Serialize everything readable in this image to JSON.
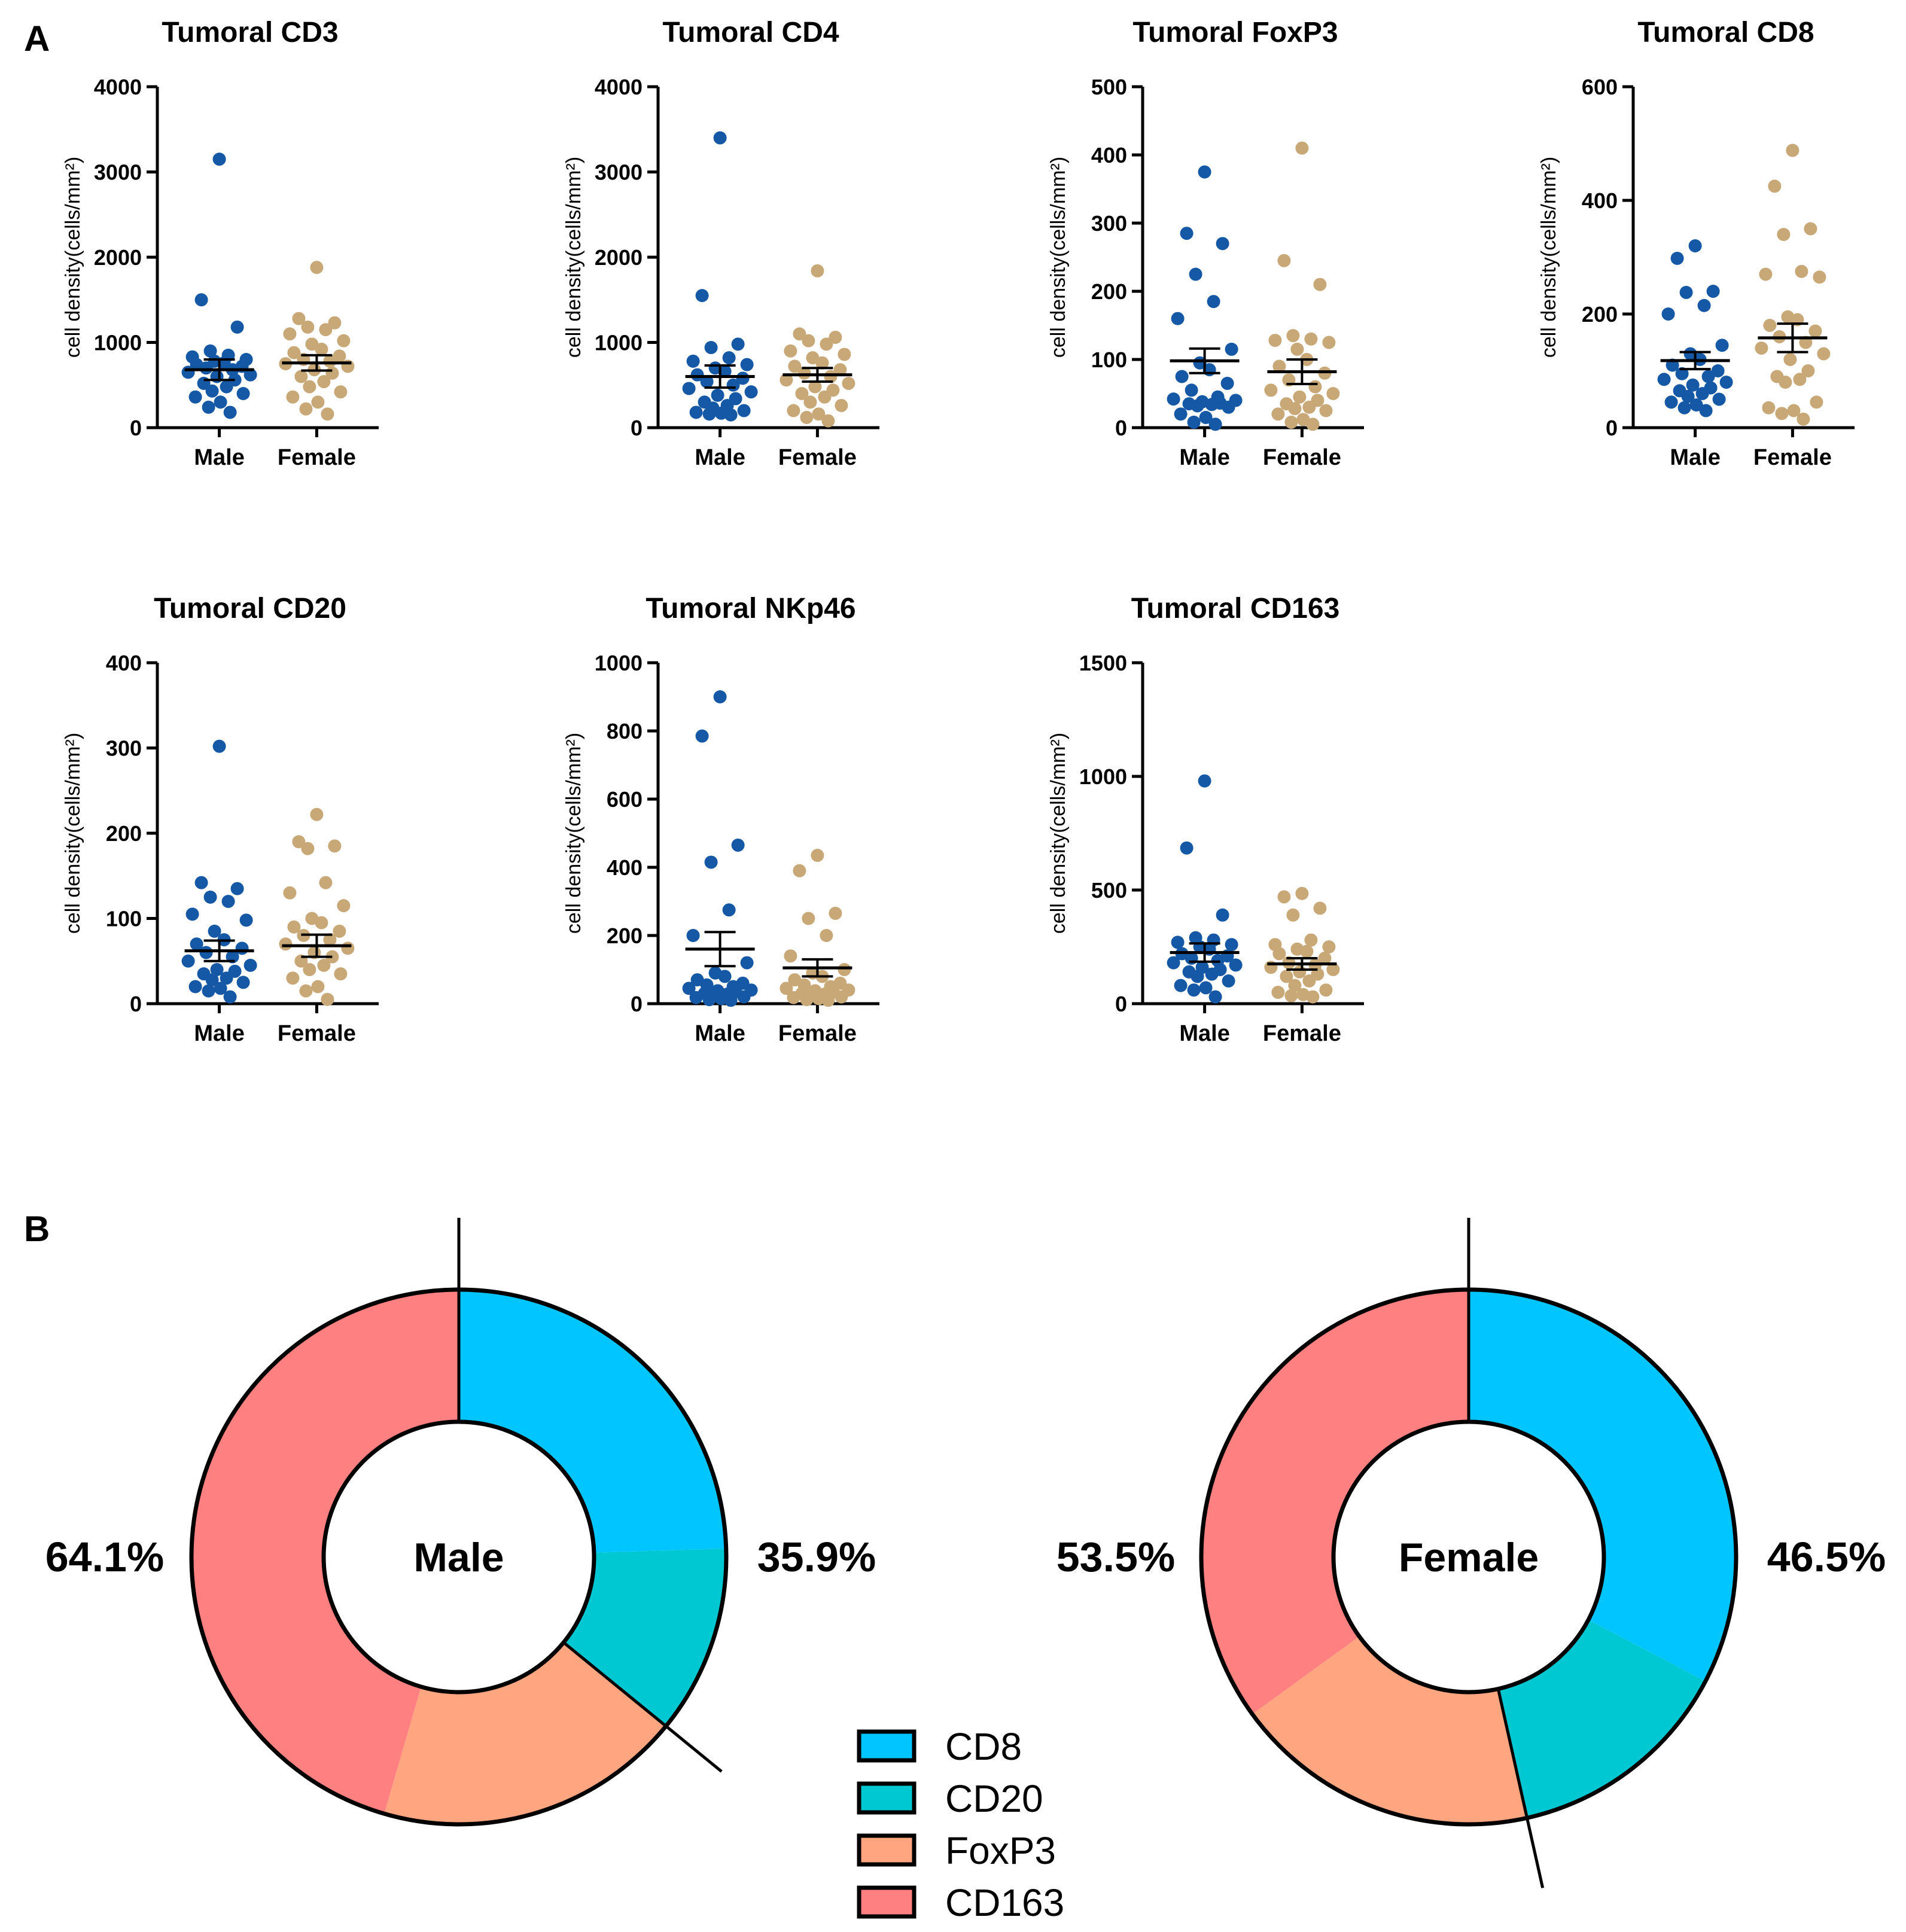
{
  "panel_labels": [
    "A",
    "B"
  ],
  "chart_data": [
    {
      "type": "scatter",
      "title": "Tumoral  CD3",
      "ylabel": "cell density(cells/mm²)",
      "ylim": [
        0,
        4000
      ],
      "yticks": [
        0,
        1000,
        2000,
        3000,
        4000
      ],
      "categories": [
        "Male",
        "Female"
      ],
      "series": [
        {
          "name": "Male",
          "mean": 680,
          "sem": 120,
          "values": [
            3150,
            1500,
            1180,
            900,
            850,
            830,
            800,
            780,
            760,
            740,
            720,
            700,
            680,
            650,
            620,
            600,
            560,
            520,
            480,
            430,
            400,
            360,
            300,
            240,
            180
          ]
        },
        {
          "name": "Female",
          "mean": 760,
          "sem": 90,
          "values": [
            1880,
            1280,
            1230,
            1180,
            1150,
            1100,
            1020,
            980,
            920,
            880,
            840,
            800,
            780,
            750,
            720,
            680,
            640,
            600,
            540,
            480,
            420,
            360,
            300,
            220,
            160
          ]
        }
      ]
    },
    {
      "type": "scatter",
      "title": "Tumoral CD4",
      "ylabel": "cell density(cells/mm²)",
      "ylim": [
        0,
        4000
      ],
      "yticks": [
        0,
        1000,
        2000,
        3000,
        4000
      ],
      "categories": [
        "Male",
        "Female"
      ],
      "series": [
        {
          "name": "Male",
          "mean": 600,
          "sem": 130,
          "values": [
            3400,
            1550,
            980,
            940,
            820,
            780,
            740,
            700,
            660,
            620,
            580,
            540,
            500,
            460,
            420,
            380,
            340,
            300,
            260,
            230,
            200,
            180,
            170,
            160,
            150
          ]
        },
        {
          "name": "Female",
          "mean": 620,
          "sem": 80,
          "values": [
            1840,
            1100,
            1060,
            1020,
            980,
            900,
            860,
            820,
            760,
            720,
            680,
            640,
            600,
            560,
            520,
            480,
            440,
            400,
            360,
            300,
            260,
            200,
            160,
            120,
            80
          ]
        }
      ]
    },
    {
      "type": "scatter",
      "title": "Tumoral FoxP3",
      "ylabel": "cell density(cells/mm²)",
      "ylim": [
        0,
        500
      ],
      "yticks": [
        0,
        100,
        200,
        300,
        400,
        500
      ],
      "categories": [
        "Male",
        "Female"
      ],
      "series": [
        {
          "name": "Male",
          "mean": 98,
          "sem": 18,
          "values": [
            375,
            285,
            270,
            225,
            185,
            160,
            115,
            95,
            85,
            75,
            65,
            55,
            45,
            42,
            40,
            38,
            36,
            35,
            34,
            32,
            30,
            20,
            15,
            8,
            5
          ]
        },
        {
          "name": "Female",
          "mean": 82,
          "sem": 18,
          "values": [
            410,
            245,
            210,
            135,
            130,
            128,
            125,
            115,
            100,
            90,
            80,
            70,
            60,
            55,
            50,
            45,
            40,
            35,
            30,
            28,
            25,
            20,
            12,
            8,
            5
          ]
        }
      ]
    },
    {
      "type": "scatter",
      "title": "Tumoral  CD8",
      "ylabel": "cell density(cells/mm²)",
      "ylim": [
        0,
        600
      ],
      "yticks": [
        0,
        200,
        400,
        600
      ],
      "categories": [
        "Male",
        "Female"
      ],
      "series": [
        {
          "name": "Male",
          "mean": 118,
          "sem": 15,
          "values": [
            320,
            298,
            240,
            238,
            215,
            200,
            145,
            130,
            120,
            110,
            100,
            95,
            90,
            85,
            80,
            75,
            70,
            65,
            60,
            55,
            50,
            45,
            40,
            35,
            30
          ]
        },
        {
          "name": "Female",
          "mean": 158,
          "sem": 25,
          "values": [
            488,
            425,
            350,
            340,
            275,
            270,
            265,
            195,
            190,
            180,
            170,
            160,
            150,
            140,
            130,
            120,
            100,
            90,
            85,
            80,
            45,
            35,
            30,
            25,
            15
          ]
        }
      ]
    },
    {
      "type": "scatter",
      "title": "Tumoral CD20",
      "ylabel": "cell density(cells/mm²)",
      "ylim": [
        0,
        400
      ],
      "yticks": [
        0,
        100,
        200,
        300,
        400
      ],
      "categories": [
        "Male",
        "Female"
      ],
      "series": [
        {
          "name": "Male",
          "mean": 62,
          "sem": 12,
          "values": [
            302,
            142,
            135,
            125,
            120,
            105,
            98,
            85,
            75,
            70,
            65,
            60,
            55,
            50,
            45,
            40,
            38,
            35,
            30,
            28,
            25,
            20,
            18,
            15,
            8
          ]
        },
        {
          "name": "Female",
          "mean": 68,
          "sem": 13,
          "values": [
            222,
            190,
            185,
            182,
            142,
            130,
            115,
            100,
            95,
            90,
            85,
            80,
            75,
            70,
            65,
            60,
            55,
            50,
            45,
            40,
            35,
            30,
            20,
            15,
            5
          ]
        }
      ]
    },
    {
      "type": "scatter",
      "title": "Tumoral NKp46",
      "ylabel": "cell density(cells/mm²)",
      "ylim": [
        0,
        1000
      ],
      "yticks": [
        0,
        200,
        400,
        600,
        800,
        1000
      ],
      "categories": [
        "Male",
        "Female"
      ],
      "series": [
        {
          "name": "Male",
          "mean": 160,
          "sem": 50,
          "values": [
            900,
            785,
            465,
            415,
            275,
            200,
            120,
            90,
            80,
            70,
            60,
            55,
            50,
            45,
            40,
            38,
            35,
            30,
            28,
            25,
            20,
            18,
            15,
            12,
            10
          ]
        },
        {
          "name": "Female",
          "mean": 105,
          "sem": 25,
          "values": [
            435,
            390,
            265,
            250,
            200,
            140,
            100,
            90,
            80,
            70,
            60,
            55,
            50,
            45,
            40,
            38,
            35,
            30,
            28,
            25,
            20,
            18,
            15,
            12,
            10
          ]
        }
      ]
    },
    {
      "type": "scatter",
      "title": "Tumoral CD163",
      "ylabel": "cell density(cells/mm²)",
      "ylim": [
        0,
        1500
      ],
      "yticks": [
        0,
        500,
        1000,
        1500
      ],
      "categories": [
        "Male",
        "Female"
      ],
      "series": [
        {
          "name": "Male",
          "mean": 225,
          "sem": 40,
          "values": [
            980,
            685,
            390,
            290,
            280,
            270,
            260,
            250,
            240,
            220,
            210,
            200,
            190,
            180,
            170,
            160,
            150,
            140,
            130,
            120,
            100,
            80,
            70,
            60,
            30
          ]
        },
        {
          "name": "Female",
          "mean": 175,
          "sem": 25,
          "values": [
            485,
            470,
            420,
            390,
            280,
            260,
            250,
            240,
            230,
            220,
            200,
            180,
            170,
            160,
            150,
            140,
            130,
            120,
            100,
            80,
            60,
            50,
            40,
            35,
            30
          ]
        }
      ]
    },
    {
      "type": "pie",
      "center_label": "Male",
      "slices": [
        {
          "name": "CD8",
          "value": 24.5
        },
        {
          "name": "CD20",
          "value": 11.4
        },
        {
          "name": "FoxP3",
          "value": 18.6
        },
        {
          "name": "CD163",
          "value": 45.5
        }
      ],
      "group_labels": {
        "right": "35.9%",
        "left": "64.1%"
      }
    },
    {
      "type": "pie",
      "center_label": "Female",
      "slices": [
        {
          "name": "CD8",
          "value": 32.7
        },
        {
          "name": "CD20",
          "value": 13.8
        },
        {
          "name": "FoxP3",
          "value": 18.5
        },
        {
          "name": "CD163",
          "value": 35.0
        }
      ],
      "group_labels": {
        "right": "46.5%",
        "left": "53.5%"
      }
    }
  ],
  "legend": [
    {
      "name": "CD8",
      "color": "#00c5ff"
    },
    {
      "name": "CD20",
      "color": "#00c8d2"
    },
    {
      "name": "FoxP3",
      "color": "#ffa57f"
    },
    {
      "name": "CD163",
      "color": "#ff8080"
    }
  ],
  "colors": {
    "male": "#1458a6",
    "female": "#c9a877",
    "axis": "#000000"
  }
}
